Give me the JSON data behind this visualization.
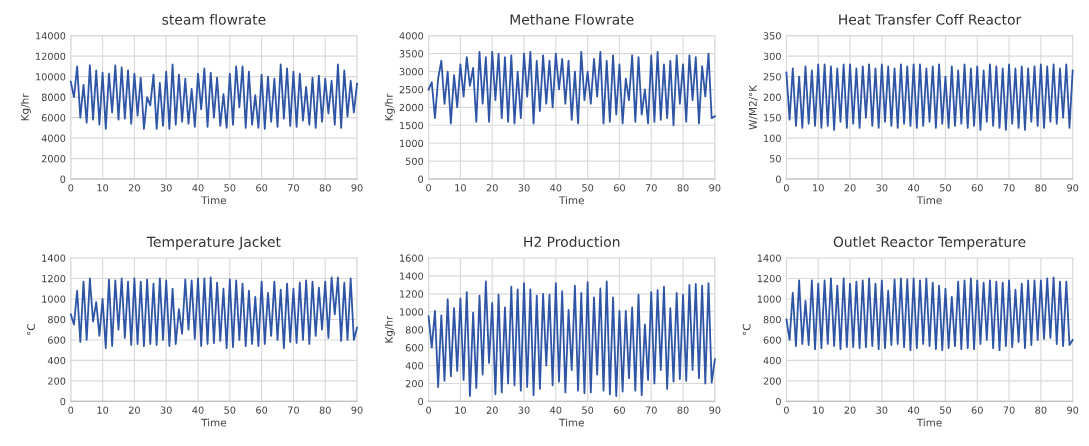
{
  "chart_data": [
    {
      "type": "line",
      "title": "steam flowrate",
      "xlabel": "Time",
      "ylabel": "Kg/hr",
      "xlim": [
        0,
        90
      ],
      "xticks": [
        0,
        10,
        20,
        30,
        40,
        50,
        60,
        70,
        80,
        90
      ],
      "ylim": [
        0,
        14000
      ],
      "yticks": [
        0,
        2000,
        4000,
        6000,
        8000,
        10000,
        12000,
        14000
      ],
      "grid": true,
      "x": [
        0,
        1,
        2,
        3,
        4,
        5,
        6,
        7,
        8,
        9,
        10,
        11,
        12,
        13,
        14,
        15,
        16,
        17,
        18,
        19,
        20,
        21,
        22,
        23,
        24,
        25,
        26,
        27,
        28,
        29,
        30,
        31,
        32,
        33,
        34,
        35,
        36,
        37,
        38,
        39,
        40,
        41,
        42,
        43,
        44,
        45,
        46,
        47,
        48,
        49,
        50,
        51,
        52,
        53,
        54,
        55,
        56,
        57,
        58,
        59,
        60,
        61,
        62,
        63,
        64,
        65,
        66,
        67,
        68,
        69,
        70,
        71,
        72,
        73,
        74,
        75,
        76,
        77,
        78,
        79,
        80,
        81,
        82,
        83,
        84,
        85,
        86,
        87,
        88,
        89,
        90
      ],
      "series": [
        {
          "color": "#2f56a6",
          "values": [
            9500,
            8000,
            11000,
            6000,
            9200,
            5500,
            11100,
            5800,
            10600,
            5300,
            10400,
            4900,
            10300,
            6500,
            11100,
            5800,
            10900,
            5900,
            10600,
            5400,
            10300,
            6200,
            9900,
            4900,
            8000,
            7200,
            10200,
            4900,
            9400,
            5200,
            10500,
            4900,
            11200,
            5300,
            10200,
            5600,
            9800,
            5400,
            8800,
            5100,
            10300,
            6800,
            10800,
            5100,
            10400,
            6000,
            9900,
            5200,
            8300,
            5000,
            10300,
            5300,
            11000,
            7000,
            11000,
            5000,
            10500,
            5300,
            8200,
            5000,
            10200,
            4900,
            10000,
            5600,
            9800,
            5100,
            11200,
            5900,
            10800,
            5200,
            10500,
            5100,
            10300,
            5700,
            9000,
            5300,
            9900,
            5000,
            10100,
            5600,
            9800,
            6400,
            9600,
            5300,
            11200,
            5000,
            10600,
            6100,
            9600,
            6500,
            9300
          ]
        }
      ]
    },
    {
      "type": "line",
      "title": "Methane Flowrate",
      "xlabel": "Time",
      "ylabel": "Kg/hr",
      "xlim": [
        0,
        90
      ],
      "xticks": [
        0,
        10,
        20,
        30,
        40,
        50,
        60,
        70,
        80,
        90
      ],
      "ylim": [
        0,
        4000
      ],
      "yticks": [
        0,
        500,
        1000,
        1500,
        2000,
        2500,
        3000,
        3500,
        4000
      ],
      "grid": true,
      "x": [
        0,
        1,
        2,
        3,
        4,
        5,
        6,
        7,
        8,
        9,
        10,
        11,
        12,
        13,
        14,
        15,
        16,
        17,
        18,
        19,
        20,
        21,
        22,
        23,
        24,
        25,
        26,
        27,
        28,
        29,
        30,
        31,
        32,
        33,
        34,
        35,
        36,
        37,
        38,
        39,
        40,
        41,
        42,
        43,
        44,
        45,
        46,
        47,
        48,
        49,
        50,
        51,
        52,
        53,
        54,
        55,
        56,
        57,
        58,
        59,
        60,
        61,
        62,
        63,
        64,
        65,
        66,
        67,
        68,
        69,
        70,
        71,
        72,
        73,
        74,
        75,
        76,
        77,
        78,
        79,
        80,
        81,
        82,
        83,
        84,
        85,
        86,
        87,
        88,
        89,
        90
      ],
      "series": [
        {
          "color": "#2f56a6",
          "values": [
            2500,
            2700,
            1700,
            2800,
            3300,
            2100,
            3000,
            1550,
            2900,
            2000,
            3200,
            2300,
            3400,
            2600,
            3100,
            1600,
            3550,
            2100,
            3400,
            1600,
            3550,
            2200,
            3500,
            1700,
            3400,
            1600,
            3450,
            1550,
            3000,
            1700,
            3500,
            2300,
            3550,
            1550,
            3300,
            1900,
            3450,
            2100,
            3300,
            2000,
            3500,
            2500,
            3350,
            2100,
            3300,
            1650,
            3000,
            1550,
            3550,
            2200,
            3000,
            2100,
            3350,
            2300,
            3550,
            1550,
            3300,
            1600,
            3450,
            1800,
            3200,
            1550,
            2800,
            2200,
            3450,
            1600,
            3400,
            1800,
            2500,
            1550,
            3450,
            1600,
            3550,
            1650,
            3200,
            1700,
            3300,
            1500,
            3450,
            2100,
            3200,
            1600,
            3450,
            2200,
            3400,
            1550,
            3150,
            2300,
            3500,
            1700,
            1750
          ]
        }
      ]
    },
    {
      "type": "line",
      "title": "Heat Transfer Coff Reactor",
      "xlabel": "Time",
      "ylabel": "W/M2/°K",
      "xlim": [
        0,
        90
      ],
      "xticks": [
        0,
        10,
        20,
        30,
        40,
        50,
        60,
        70,
        80,
        90
      ],
      "ylim": [
        0,
        350
      ],
      "yticks": [
        0,
        50,
        100,
        150,
        200,
        250,
        300,
        350
      ],
      "grid": true,
      "x": [
        0,
        1,
        2,
        3,
        4,
        5,
        6,
        7,
        8,
        9,
        10,
        11,
        12,
        13,
        14,
        15,
        16,
        17,
        18,
        19,
        20,
        21,
        22,
        23,
        24,
        25,
        26,
        27,
        28,
        29,
        30,
        31,
        32,
        33,
        34,
        35,
        36,
        37,
        38,
        39,
        40,
        41,
        42,
        43,
        44,
        45,
        46,
        47,
        48,
        49,
        50,
        51,
        52,
        53,
        54,
        55,
        56,
        57,
        58,
        59,
        60,
        61,
        62,
        63,
        64,
        65,
        66,
        67,
        68,
        69,
        70,
        71,
        72,
        73,
        74,
        75,
        76,
        77,
        78,
        79,
        80,
        81,
        82,
        83,
        84,
        85,
        86,
        87,
        88,
        89,
        90
      ],
      "series": [
        {
          "color": "#2f56a6",
          "values": [
            260,
            145,
            270,
            130,
            250,
            125,
            275,
            135,
            265,
            130,
            280,
            125,
            280,
            130,
            275,
            120,
            270,
            140,
            280,
            125,
            280,
            135,
            270,
            125,
            275,
            150,
            280,
            130,
            270,
            125,
            280,
            140,
            275,
            130,
            270,
            125,
            280,
            135,
            275,
            130,
            280,
            125,
            280,
            130,
            270,
            140,
            275,
            125,
            280,
            135,
            250,
            125,
            275,
            130,
            265,
            135,
            280,
            125,
            270,
            130,
            275,
            120,
            265,
            140,
            280,
            130,
            275,
            125,
            270,
            120,
            280,
            135,
            270,
            125,
            275,
            120,
            270,
            140,
            275,
            130,
            280,
            125,
            275,
            140,
            280,
            135,
            270,
            150,
            280,
            125,
            265
          ]
        }
      ]
    },
    {
      "type": "line",
      "title": "Temperature Jacket",
      "xlabel": "Time",
      "ylabel": "°C",
      "xlim": [
        0,
        90
      ],
      "xticks": [
        0,
        10,
        20,
        30,
        40,
        50,
        60,
        70,
        80,
        90
      ],
      "ylim": [
        0,
        1400
      ],
      "yticks": [
        0,
        200,
        400,
        600,
        800,
        1000,
        1200,
        1400
      ],
      "grid": true,
      "x": [
        0,
        1,
        2,
        3,
        4,
        5,
        6,
        7,
        8,
        9,
        10,
        11,
        12,
        13,
        14,
        15,
        16,
        17,
        18,
        19,
        20,
        21,
        22,
        23,
        24,
        25,
        26,
        27,
        28,
        29,
        30,
        31,
        32,
        33,
        34,
        35,
        36,
        37,
        38,
        39,
        40,
        41,
        42,
        43,
        44,
        45,
        46,
        47,
        48,
        49,
        50,
        51,
        52,
        53,
        54,
        55,
        56,
        57,
        58,
        59,
        60,
        61,
        62,
        63,
        64,
        65,
        66,
        67,
        68,
        69,
        70,
        71,
        72,
        73,
        74,
        75,
        76,
        77,
        78,
        79,
        80,
        81,
        82,
        83,
        84,
        85,
        86,
        87,
        88,
        89,
        90
      ],
      "series": [
        {
          "color": "#2f56a6",
          "values": [
            850,
            750,
            1080,
            580,
            1170,
            600,
            1200,
            780,
            970,
            640,
            1000,
            520,
            1190,
            540,
            1180,
            700,
            1200,
            620,
            1170,
            550,
            1200,
            560,
            1170,
            540,
            1190,
            560,
            1150,
            550,
            1200,
            600,
            1180,
            540,
            1100,
            560,
            900,
            660,
            1190,
            700,
            1180,
            610,
            1200,
            540,
            1200,
            560,
            1210,
            570,
            1160,
            590,
            1100,
            520,
            1190,
            530,
            1180,
            600,
            1150,
            540,
            1080,
            560,
            1020,
            540,
            1170,
            560,
            1060,
            640,
            1170,
            600,
            1090,
            520,
            1150,
            580,
            1100,
            570,
            1160,
            600,
            1180,
            560,
            1170,
            640,
            1110,
            700,
            1170,
            620,
            1210,
            850,
            1210,
            590,
            1160,
            600,
            1200,
            600,
            720
          ]
        }
      ]
    },
    {
      "type": "line",
      "title": "H2 Production",
      "xlabel": "Time",
      "ylabel": "Kg/hr",
      "xlim": [
        0,
        90
      ],
      "xticks": [
        0,
        10,
        20,
        30,
        40,
        50,
        60,
        70,
        80,
        90
      ],
      "ylim": [
        0,
        1600
      ],
      "yticks": [
        0,
        200,
        400,
        600,
        800,
        1000,
        1200,
        1400,
        1600
      ],
      "grid": true,
      "x": [
        0,
        1,
        2,
        3,
        4,
        5,
        6,
        7,
        8,
        9,
        10,
        11,
        12,
        13,
        14,
        15,
        16,
        17,
        18,
        19,
        20,
        21,
        22,
        23,
        24,
        25,
        26,
        27,
        28,
        29,
        30,
        31,
        32,
        33,
        34,
        35,
        36,
        37,
        38,
        39,
        40,
        41,
        42,
        43,
        44,
        45,
        46,
        47,
        48,
        49,
        50,
        51,
        52,
        53,
        54,
        55,
        56,
        57,
        58,
        59,
        60,
        61,
        62,
        63,
        64,
        65,
        66,
        67,
        68,
        69,
        70,
        71,
        72,
        73,
        74,
        75,
        76,
        77,
        78,
        79,
        80,
        81,
        82,
        83,
        84,
        85,
        86,
        87,
        88,
        89,
        90
      ],
      "series": [
        {
          "color": "#2f56a6",
          "values": [
            950,
            600,
            1010,
            160,
            960,
            230,
            1140,
            280,
            1040,
            340,
            1150,
            240,
            1220,
            60,
            990,
            150,
            1180,
            300,
            1340,
            430,
            1100,
            80,
            1190,
            100,
            1050,
            200,
            1280,
            180,
            1250,
            120,
            1320,
            160,
            1250,
            70,
            1180,
            140,
            1200,
            400,
            1190,
            180,
            1320,
            220,
            1230,
            100,
            1020,
            350,
            1290,
            120,
            1210,
            90,
            1330,
            100,
            1160,
            300,
            1260,
            120,
            1340,
            80,
            1160,
            60,
            1010,
            110,
            1010,
            260,
            1050,
            120,
            1190,
            70,
            860,
            240,
            1220,
            200,
            1240,
            350,
            1280,
            140,
            1040,
            220,
            1210,
            250,
            1190,
            230,
            1300,
            350,
            1310,
            260,
            1290,
            200,
            1320,
            210,
            470
          ]
        }
      ]
    },
    {
      "type": "line",
      "title": "Outlet Reactor Temperature",
      "xlabel": "Time",
      "ylabel": "°C",
      "xlim": [
        0,
        90
      ],
      "xticks": [
        0,
        10,
        20,
        30,
        40,
        50,
        60,
        70,
        80,
        90
      ],
      "ylim": [
        0,
        1400
      ],
      "yticks": [
        0,
        200,
        400,
        600,
        800,
        1000,
        1200,
        1400
      ],
      "grid": true,
      "x": [
        0,
        1,
        2,
        3,
        4,
        5,
        6,
        7,
        8,
        9,
        10,
        11,
        12,
        13,
        14,
        15,
        16,
        17,
        18,
        19,
        20,
        21,
        22,
        23,
        24,
        25,
        26,
        27,
        28,
        29,
        30,
        31,
        32,
        33,
        34,
        35,
        36,
        37,
        38,
        39,
        40,
        41,
        42,
        43,
        44,
        45,
        46,
        47,
        48,
        49,
        50,
        51,
        52,
        53,
        54,
        55,
        56,
        57,
        58,
        59,
        60,
        61,
        62,
        63,
        64,
        65,
        66,
        67,
        68,
        69,
        70,
        71,
        72,
        73,
        74,
        75,
        76,
        77,
        78,
        79,
        80,
        81,
        82,
        83,
        84,
        85,
        86,
        87,
        88,
        89,
        90
      ],
      "series": [
        {
          "color": "#2f56a6",
          "values": [
            800,
            600,
            1060,
            540,
            1180,
            560,
            980,
            550,
            1180,
            510,
            1150,
            520,
            1180,
            560,
            1200,
            540,
            1130,
            510,
            1200,
            530,
            1150,
            530,
            1170,
            520,
            1180,
            530,
            1200,
            540,
            1150,
            510,
            1180,
            520,
            1080,
            550,
            1190,
            560,
            1200,
            530,
            1190,
            500,
            1200,
            520,
            1180,
            560,
            1200,
            540,
            1160,
            510,
            1130,
            500,
            1100,
            520,
            1020,
            540,
            1170,
            510,
            1180,
            520,
            1200,
            510,
            1180,
            560,
            1160,
            600,
            1180,
            520,
            1170,
            500,
            1160,
            540,
            1180,
            530,
            1090,
            580,
            1150,
            520,
            1180,
            550,
            1180,
            600,
            1180,
            610,
            1200,
            620,
            1210,
            560,
            1170,
            540,
            1170,
            550,
            600
          ]
        }
      ]
    }
  ]
}
